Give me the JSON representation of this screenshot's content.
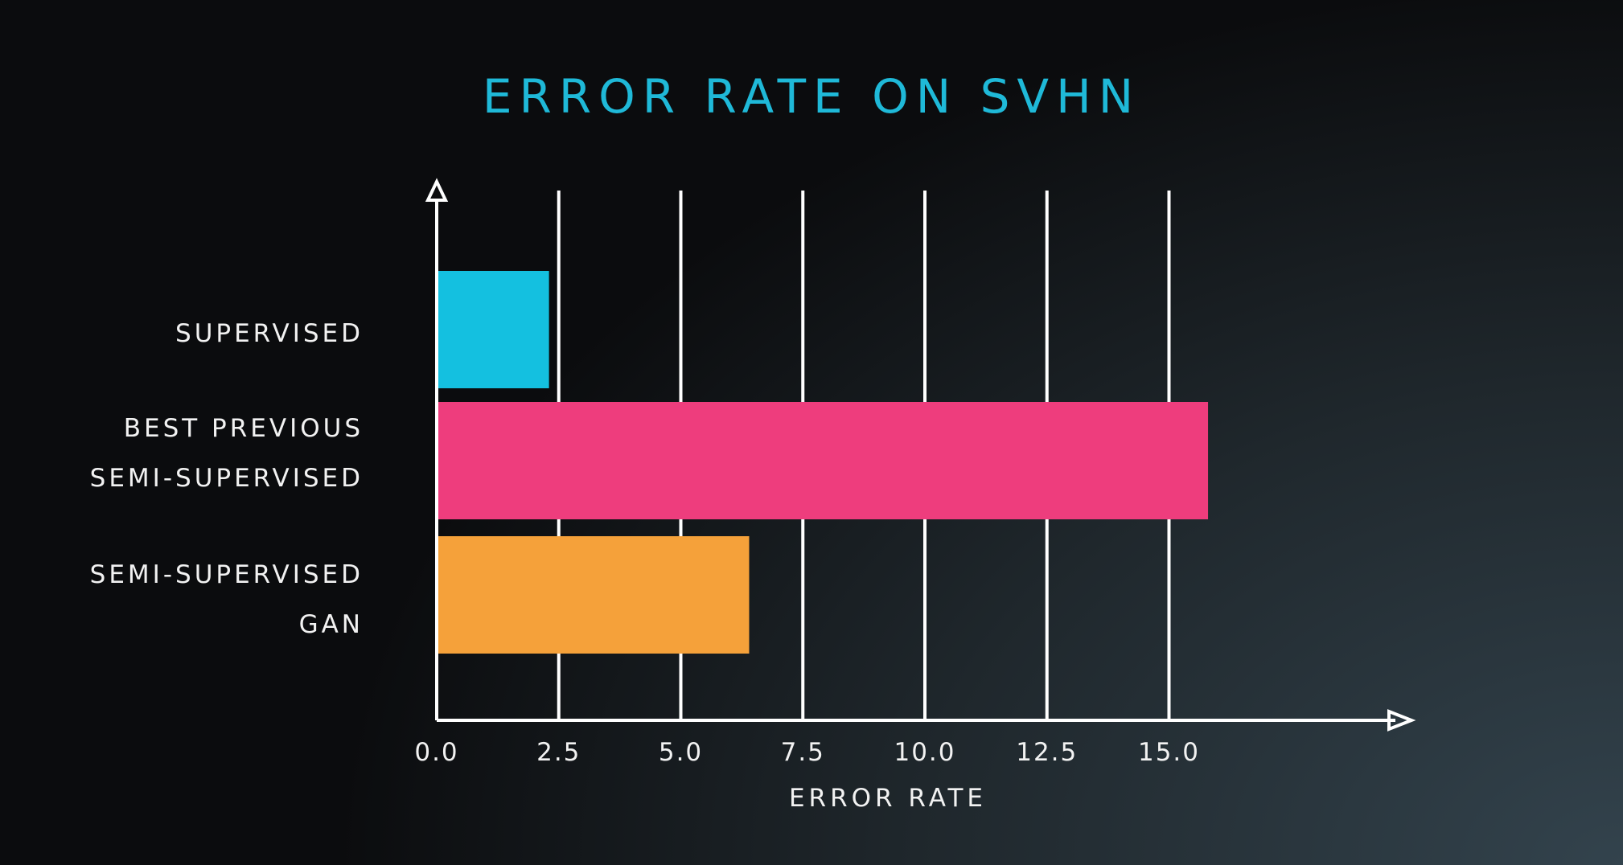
{
  "chart_data": {
    "type": "bar",
    "orientation": "horizontal",
    "title": "ERROR RATE ON SVHN",
    "xlabel": "ERROR RATE",
    "ylabel": "",
    "xlim": [
      0,
      17.5
    ],
    "x_ticks": [
      "0.0",
      "2.5",
      "5.0",
      "7.5",
      "10.0",
      "12.5",
      "15.0"
    ],
    "x_tick_values": [
      0,
      2.5,
      5,
      7.5,
      10,
      12.5,
      15
    ],
    "grid": true,
    "categories": [
      [
        "SUPERVISED"
      ],
      [
        "BEST PREVIOUS",
        "SEMI-SUPERVISED"
      ],
      [
        "SEMI-SUPERVISED",
        "GAN"
      ]
    ],
    "values": [
      2.3,
      15.8,
      6.4
    ],
    "colors": [
      "#14c0e0",
      "#ee3d7d",
      "#f5a13a"
    ]
  },
  "colors": {
    "title": "#1fb9d8",
    "text": "#f2f2f2",
    "axis": "#ffffff"
  }
}
